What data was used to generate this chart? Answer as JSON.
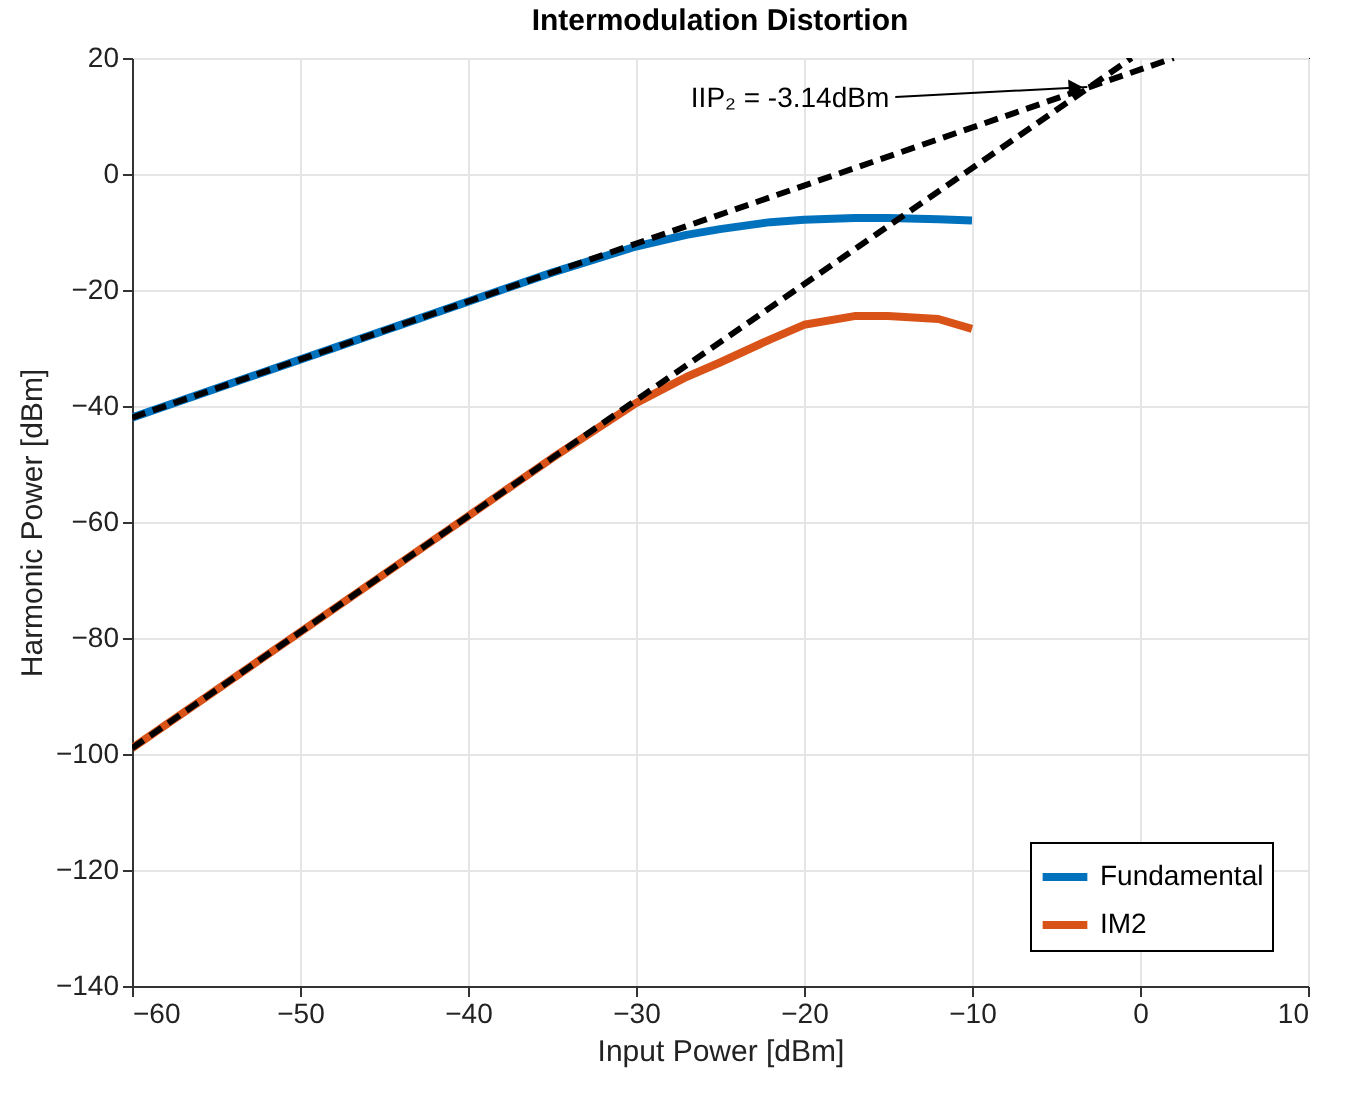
{
  "chart_data": {
    "type": "line",
    "title": "Intermodulation Distortion",
    "xlabel": "Input Power [dBm]",
    "ylabel": "Harmonic Power [dBm]",
    "xlim": [
      -60,
      10
    ],
    "xticks": [
      -60,
      -50,
      -40,
      -30,
      -20,
      -10,
      0,
      10
    ],
    "ylim": [
      -140,
      20
    ],
    "yticks": [
      -140,
      -120,
      -100,
      -80,
      -60,
      -40,
      -20,
      0,
      20
    ],
    "grid": true,
    "legend": "bottom right",
    "marker": "none",
    "series": [
      {
        "name": "Fundamental",
        "color": "#0072bd",
        "line_style": "solid",
        "x": [
          -60,
          -50,
          -40,
          -35,
          -30,
          -27,
          -25,
          -22,
          -20,
          -17,
          -15,
          -12,
          -10
        ],
        "values": [
          -42,
          -32,
          -22,
          -17,
          -12.5,
          -10.5,
          -9.5,
          -8.3,
          -7.9,
          -7.6,
          -7.6,
          -7.8,
          -8
        ]
      },
      {
        "name": "IM2",
        "color": "#d95319",
        "line_style": "solid",
        "x": [
          -60,
          -50,
          -40,
          -35,
          -30,
          -27,
          -25,
          -22,
          -20,
          -17,
          -15,
          -12,
          -10
        ],
        "values": [
          -99,
          -79,
          -59,
          -49,
          -39.5,
          -35,
          -32.5,
          -28.5,
          -26,
          -24.5,
          -24.5,
          -25,
          -26.7
        ]
      },
      {
        "color": "#000000",
        "line_style": "dashed",
        "x": [
          -60,
          2
        ],
        "values": [
          -42,
          20
        ]
      },
      {
        "color": "#000000",
        "line_style": "dashed",
        "x": [
          -60,
          -0.5
        ],
        "values": [
          -99,
          20
        ]
      }
    ],
    "annotations": [
      {
        "text": "IIP₂ = -3.14dBm",
        "x": -3.14,
        "y": 15
      }
    ]
  }
}
